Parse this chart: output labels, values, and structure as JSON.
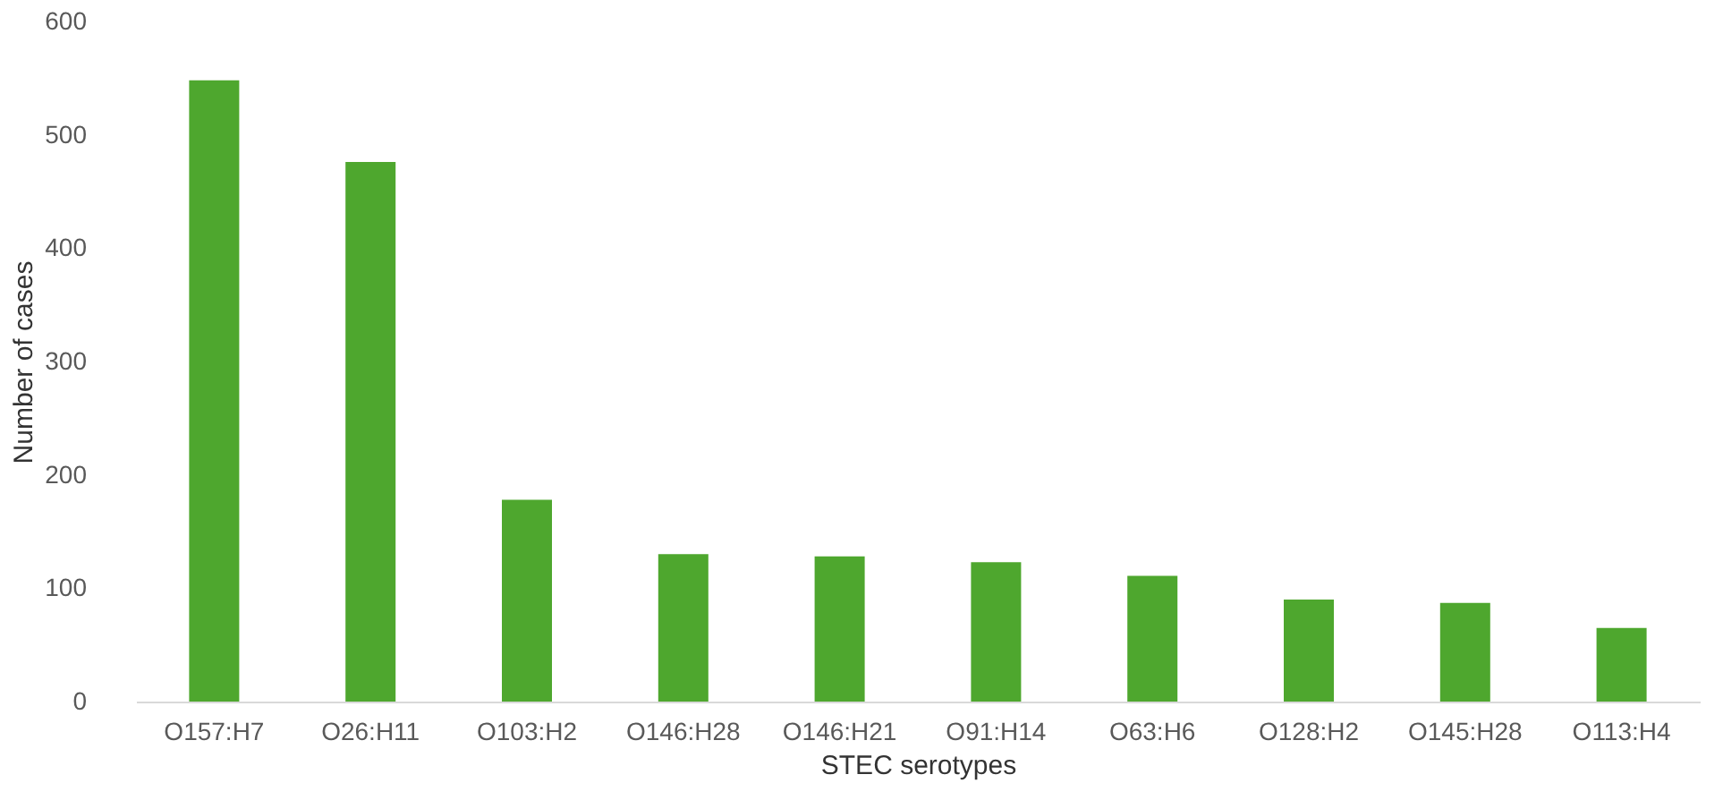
{
  "chart_data": {
    "type": "bar",
    "xlabel": "STEC serotypes",
    "ylabel": "Number of cases",
    "categories": [
      "O157:H7",
      "O26:H11",
      "O103:H2",
      "O146:H28",
      "O146:H21",
      "O91:H14",
      "O63:H6",
      "O128:H2",
      "O145:H28",
      "O113:H4"
    ],
    "values": [
      548,
      476,
      178,
      130,
      128,
      123,
      111,
      90,
      87,
      65
    ],
    "color": "#4ea72e",
    "ylim": [
      0,
      600
    ],
    "yticks": [
      0,
      100,
      200,
      300,
      400,
      500,
      600
    ],
    "grid": false
  }
}
